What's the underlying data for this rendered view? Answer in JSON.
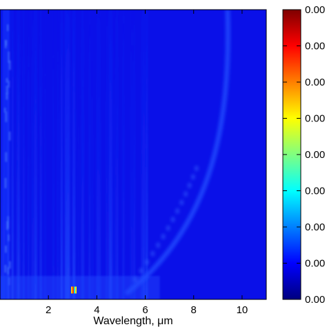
{
  "chart_data": {
    "type": "heatmap",
    "title": "",
    "xlabel": "Wavelength, μm",
    "ylabel": "",
    "xlim": [
      0,
      11
    ],
    "x_ticks": [
      "2",
      "4",
      "6",
      "8",
      "10"
    ],
    "x_tick_values": [
      2,
      4,
      6,
      8,
      10
    ],
    "grid": false,
    "colormap": "jet",
    "colormap_stops": [
      "#00007f",
      "#0000ff",
      "#0080ff",
      "#00ffff",
      "#80ff80",
      "#ffff00",
      "#ff8000",
      "#ff0000",
      "#7f0000"
    ],
    "background_value": 0.05,
    "colorbar": {
      "position": "right",
      "tick_labels": [
        "0.00",
        "0.00",
        "0.00",
        "0.00",
        "0.00",
        "0.00",
        "0.00",
        "0.00",
        "0.00"
      ]
    },
    "features": [
      {
        "kind": "hotspot",
        "x": 3.05,
        "y_fraction": 0.97,
        "value": 0.95
      },
      {
        "kind": "vertical_streaks",
        "x_range": [
          0,
          6.1
        ],
        "value": 0.17
      },
      {
        "kind": "curved_ridge",
        "x_top": 9.4,
        "x_bottom": 5.2,
        "value": 0.16
      }
    ]
  }
}
